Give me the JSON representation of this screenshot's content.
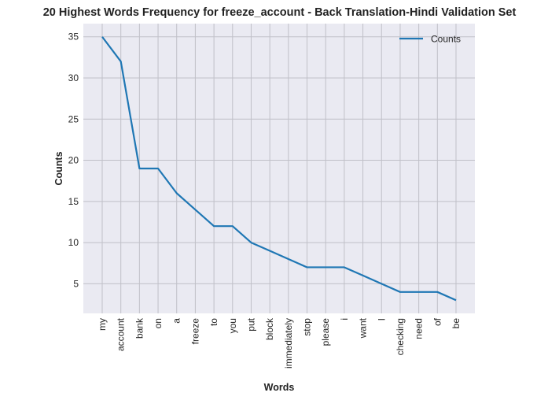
{
  "chart_data": {
    "type": "line",
    "title": "20 Highest Words Frequency for freeze_account - Back Translation-Hindi Validation Set",
    "xlabel": "Words",
    "ylabel": "Counts",
    "categories": [
      "my",
      "account",
      "bank",
      "on",
      "a",
      "freeze",
      "to",
      "you",
      "put",
      "block",
      "immediately",
      "stop",
      "please",
      "i",
      "want",
      "I",
      "checking",
      "need",
      "of",
      "be"
    ],
    "series": [
      {
        "name": "Counts",
        "values": [
          35,
          32,
          19,
          19,
          16,
          14,
          12,
          12,
          10,
          9,
          8,
          7,
          7,
          7,
          6,
          5,
          4,
          4,
          4,
          3
        ]
      }
    ],
    "ylim": [
      1.4,
      36.6
    ],
    "yticks": [
      5,
      10,
      15,
      20,
      25,
      30,
      35
    ],
    "grid": true,
    "legend_position": "top-right",
    "colors": {
      "line": "#1f77b4",
      "plot_bg": "#eaeaf2",
      "grid": "#c0c0c8"
    }
  }
}
